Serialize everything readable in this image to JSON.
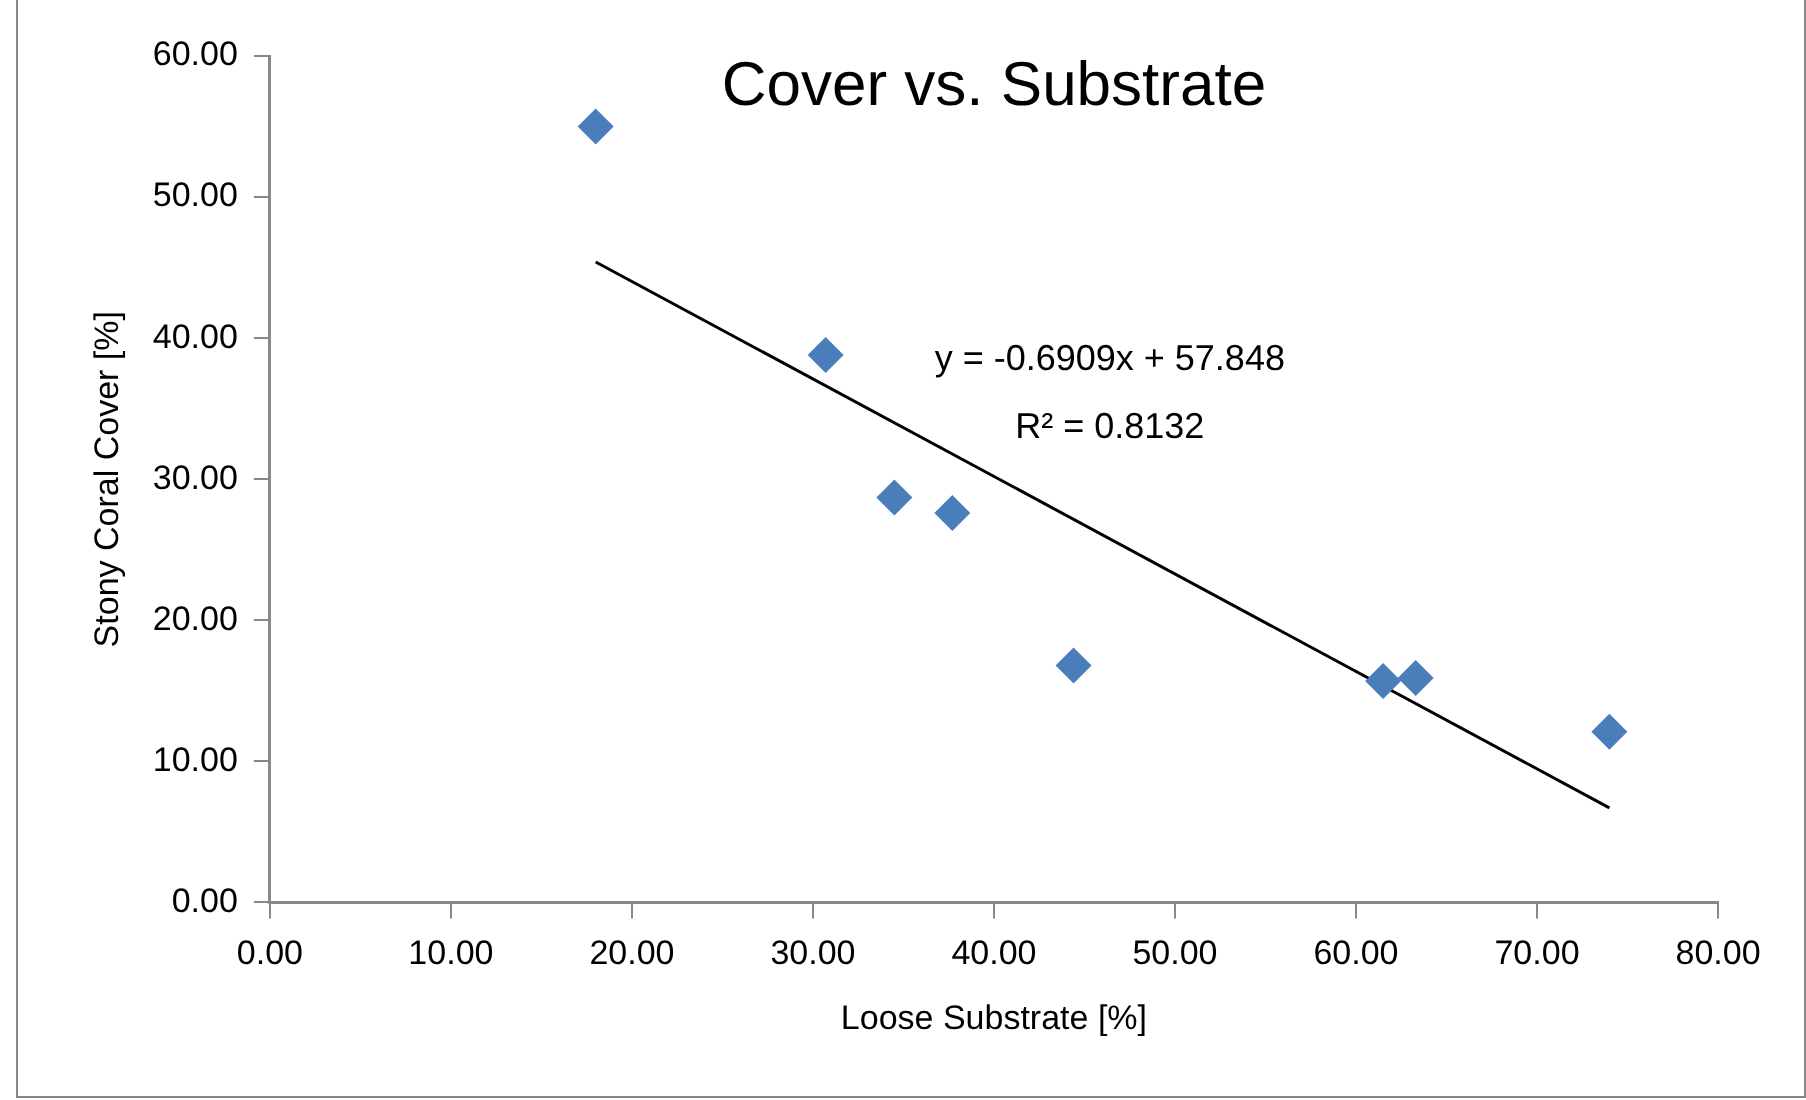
{
  "chart_data": {
    "type": "scatter",
    "title": "Cover vs. Substrate",
    "xlabel": "Loose Substrate [%]",
    "ylabel": "Stony Coral Cover [%]",
    "x": [
      18.0,
      30.7,
      34.5,
      37.7,
      44.4,
      61.5,
      63.3,
      74.0
    ],
    "series": [
      {
        "color": "#4a7ebb",
        "values": [
          55.0,
          38.8,
          28.7,
          27.6,
          16.8,
          15.7,
          15.9,
          12.1
        ]
      },
      {
        "type": "line",
        "color": "#000000",
        "x": [
          18.0,
          74.0
        ],
        "values": [
          45.4,
          6.7
        ],
        "marker": "none"
      }
    ],
    "annotations": [
      "y = -0.6909x + 57.848",
      "R² = 0.8132"
    ],
    "xlim": [
      0,
      80
    ],
    "xticks": [
      {
        "value": 0,
        "label": "0.00"
      },
      {
        "value": 10,
        "label": "10.00"
      },
      {
        "value": 20,
        "label": "20.00"
      },
      {
        "value": 30,
        "label": "30.00"
      },
      {
        "value": 40,
        "label": "40.00"
      },
      {
        "value": 50,
        "label": "50.00"
      },
      {
        "value": 60,
        "label": "60.00"
      },
      {
        "value": 70,
        "label": "70.00"
      },
      {
        "value": 80,
        "label": "80.00"
      }
    ],
    "ylim": [
      0,
      60
    ],
    "yticks": [
      {
        "value": 0,
        "label": "0.00"
      },
      {
        "value": 10,
        "label": "10.00"
      },
      {
        "value": 20,
        "label": "20.00"
      },
      {
        "value": 30,
        "label": "30.00"
      },
      {
        "value": 40,
        "label": "40.00"
      },
      {
        "value": 50,
        "label": "50.00"
      },
      {
        "value": 60,
        "label": "60.00"
      }
    ],
    "marker": "diamond",
    "grid": false,
    "legend": false
  }
}
